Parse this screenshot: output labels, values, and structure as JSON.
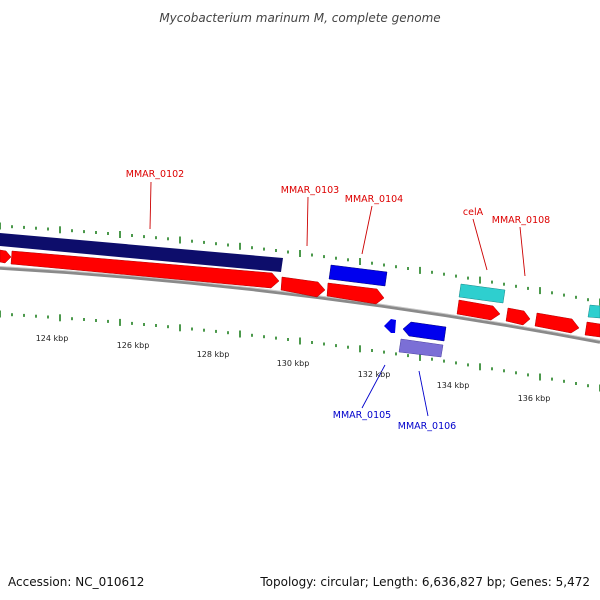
{
  "title": "Mycobacterium marinum M, complete genome",
  "footer": {
    "accession": "Accession: NC_010612",
    "summary": "Topology: circular; Length: 6,636,827 bp; Genes: 5,472"
  },
  "colors": {
    "forward_cds": "#ff0000",
    "reverse_cds": "#0000ff",
    "rna_gene": "#2ecfcf",
    "long_feature": "#0d0d6b",
    "pale_reverse": "#7b6fd6",
    "ticks": "#117711",
    "backbone": "#888888",
    "forward_label": "#dd0000",
    "reverse_label": "#0000cc"
  },
  "scale_labels": [
    "124 kbp",
    "126 kbp",
    "128 kbp",
    "130 kbp",
    "132 kbp",
    "134 kbp",
    "136 kbp"
  ],
  "gene_labels": {
    "forward": [
      "MMAR_0102",
      "MMAR_0103",
      "MMAR_0104",
      "celA",
      "MMAR_0108"
    ],
    "reverse": [
      "MMAR_0105",
      "MMAR_0106"
    ]
  }
}
